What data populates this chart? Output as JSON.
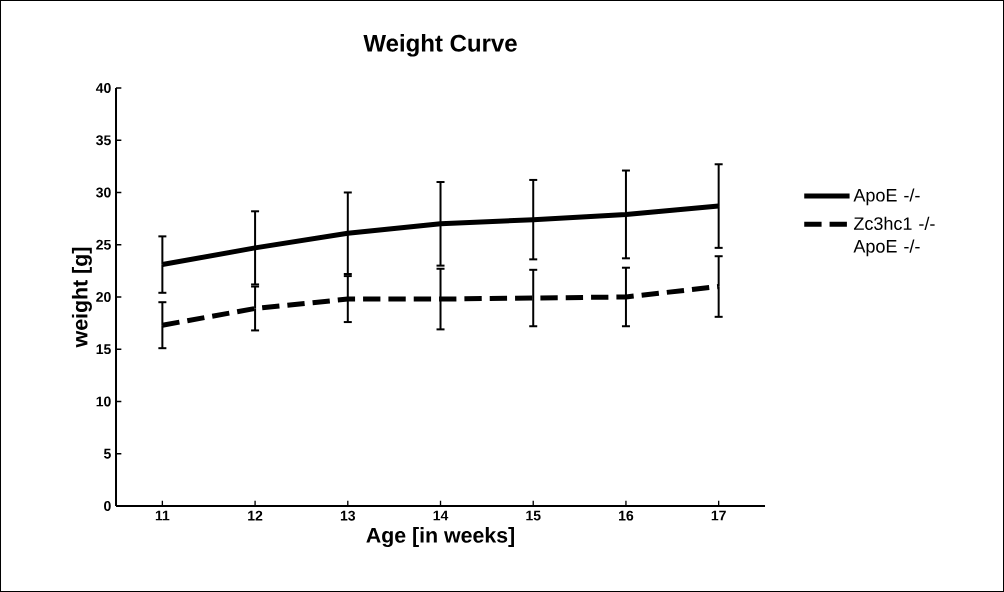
{
  "chart_data": {
    "type": "line",
    "title": "Weight Curve",
    "xlabel": "Age [in weeks]",
    "ylabel": "weight [g]",
    "x": [
      11,
      12,
      13,
      14,
      15,
      16,
      17
    ],
    "series": [
      {
        "name": "ApoE -/-",
        "color": "#000000",
        "line_style": "solid",
        "values": [
          23.1,
          24.7,
          26.1,
          27.0,
          27.4,
          27.9,
          28.7
        ],
        "errors": [
          2.7,
          3.5,
          3.9,
          4.0,
          3.8,
          4.2,
          4.0
        ]
      },
      {
        "name": "Zc3hc1 -/- ApoE -/-",
        "color": "#000000",
        "line_style": "dashed",
        "values": [
          17.3,
          18.9,
          19.8,
          19.8,
          19.9,
          20.0,
          21.0
        ],
        "errors": [
          2.2,
          2.1,
          2.2,
          2.9,
          2.7,
          2.8,
          2.9
        ]
      }
    ],
    "xlim": [
      10.5,
      17.5
    ],
    "ylim": [
      0,
      40
    ],
    "xticks": [
      11,
      12,
      13,
      14,
      15,
      16,
      17
    ],
    "yticks": [
      0,
      5,
      10,
      15,
      20,
      25,
      30,
      35,
      40
    ],
    "legend": "right"
  }
}
